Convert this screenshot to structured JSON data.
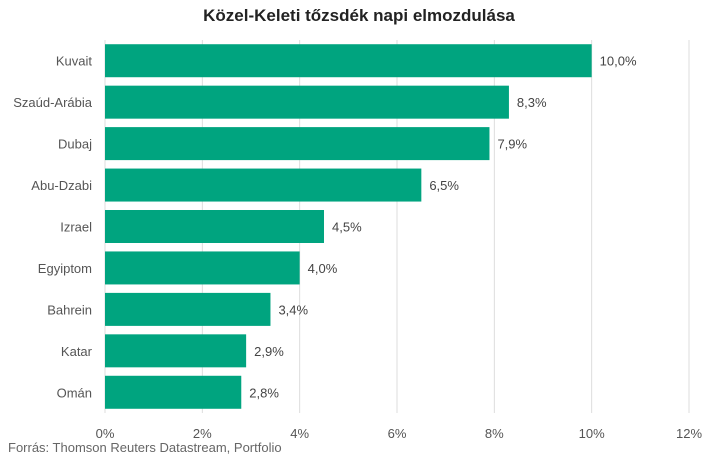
{
  "title": "Közel-Keleti tőzsdék napi elmozdulása",
  "source": "Forrás: Thomson Reuters Datastream, Portfolio",
  "colors": {
    "bar": "#00a47f",
    "grid": "#dddddd",
    "text": "#444444",
    "axis_text": "#555555"
  },
  "chart_data": {
    "type": "bar",
    "orientation": "horizontal",
    "title": "Közel-Keleti tőzsdék napi elmozdulása",
    "categories": [
      "Kuvait",
      "Szaúd-Arábia",
      "Dubaj",
      "Abu-Dzabi",
      "Izrael",
      "Egyiptom",
      "Bahrein",
      "Katar",
      "Omán"
    ],
    "values": [
      10.0,
      8.3,
      7.9,
      6.5,
      4.5,
      4.0,
      3.4,
      2.9,
      2.8
    ],
    "data_labels": [
      "10,0%",
      "8,3%",
      "7,9%",
      "6,5%",
      "4,5%",
      "4,0%",
      "3,4%",
      "2,9%",
      "2,8%"
    ],
    "xlim": [
      0,
      12
    ],
    "xticks": [
      0,
      2,
      4,
      6,
      8,
      10,
      12
    ],
    "xtick_labels": [
      "0%",
      "2%",
      "4%",
      "6%",
      "8%",
      "10%",
      "12%"
    ],
    "xlabel": "",
    "ylabel": "",
    "grid": "vertical",
    "legend": "none"
  }
}
